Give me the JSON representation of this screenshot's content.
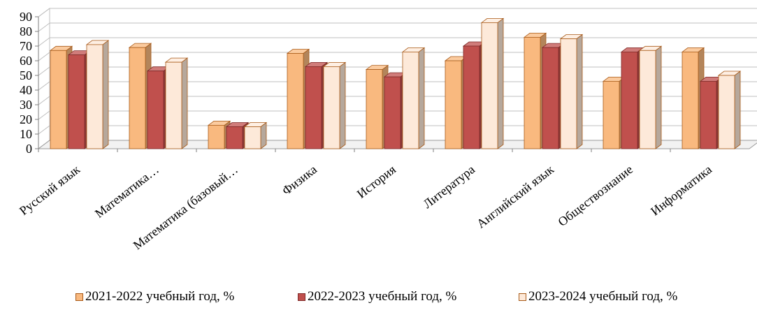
{
  "chart_data": {
    "type": "bar",
    "variant": "3d-clustered-column",
    "title": "",
    "xlabel": "",
    "ylabel": "",
    "ylim": [
      0,
      90
    ],
    "yticks": [
      0,
      10,
      20,
      30,
      40,
      50,
      60,
      70,
      80,
      90
    ],
    "grid": true,
    "legend_position": "bottom",
    "categories": [
      "Русский язык",
      "Математика…",
      "Математика (базовый…",
      "Физика",
      "История",
      "Литература",
      "Английский язык",
      "Обществознание",
      "Информатика"
    ],
    "series": [
      {
        "name": "2021-2022 учебный год, %",
        "color": "#F9B97F",
        "stroke": "#A85A18",
        "values": [
          67,
          69,
          16,
          65,
          54,
          60,
          76,
          46,
          66
        ]
      },
      {
        "name": "2022-2023 учебный год, %",
        "color": "#C0504D",
        "stroke": "#7F2A28",
        "values": [
          64,
          53,
          15,
          56,
          49,
          70,
          69,
          66,
          46
        ]
      },
      {
        "name": "2023-2024 учебный год, %",
        "color": "#FDE9D9",
        "stroke": "#A85A18",
        "values": [
          71,
          59,
          15,
          56,
          66,
          86,
          75,
          67,
          50
        ]
      }
    ]
  }
}
